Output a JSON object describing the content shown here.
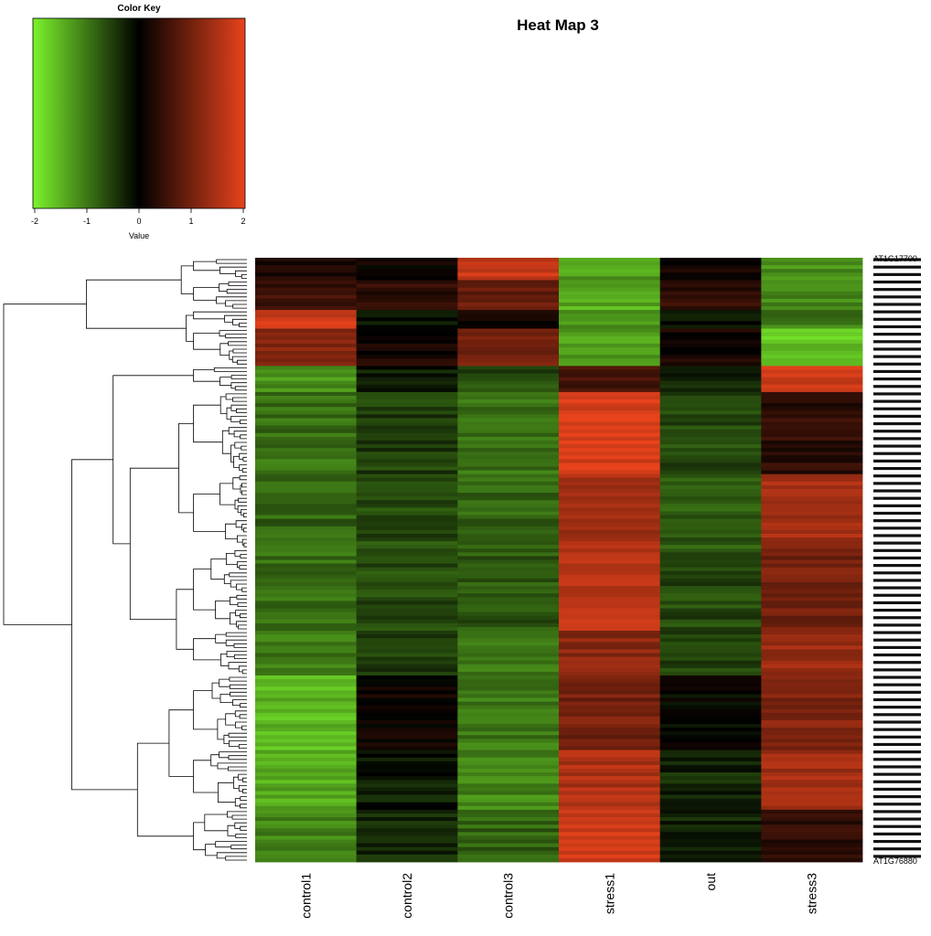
{
  "chart_data": {
    "type": "heatmap",
    "title": "Heat Map 3",
    "color_key": {
      "title": "Color Key",
      "xlabel": "Value",
      "ticks": [
        "-2",
        "-1",
        "0",
        "1",
        "2"
      ],
      "range": [
        -2,
        2
      ],
      "colors": {
        "low": "#7cf32c",
        "mid": "#000000",
        "high": "#e8431c"
      }
    },
    "columns": [
      "control1",
      "control2",
      "control3",
      "stress1",
      "out",
      "stress3"
    ],
    "row_labels_visible": [
      "AT1G17700",
      "AT1G76880"
    ],
    "row_dendrogram": true,
    "row_blocks": [
      {
        "rows": 6,
        "values": [
          0.3,
          0.1,
          1.7,
          -1.3,
          0.1,
          -1.2
        ]
      },
      {
        "rows": 8,
        "values": [
          0.5,
          0.4,
          0.9,
          -1.4,
          0.4,
          -1.1
        ]
      },
      {
        "rows": 5,
        "values": [
          1.8,
          -0.2,
          0.2,
          -1.2,
          -0.1,
          -1.0
        ]
      },
      {
        "rows": 10,
        "values": [
          1.2,
          0.2,
          1.0,
          -1.3,
          0.2,
          -1.6
        ]
      },
      {
        "rows": 7,
        "values": [
          -1.2,
          -0.2,
          -0.6,
          0.5,
          -0.3,
          1.8
        ]
      },
      {
        "rows": 22,
        "values": [
          -0.9,
          -0.5,
          -0.9,
          1.9,
          -0.6,
          0.4
        ]
      },
      {
        "rows": 20,
        "values": [
          -0.8,
          -0.6,
          -0.8,
          1.4,
          -0.7,
          1.4
        ]
      },
      {
        "rows": 22,
        "values": [
          -0.9,
          -0.6,
          -0.7,
          1.6,
          -0.6,
          1.0
        ]
      },
      {
        "rows": 12,
        "values": [
          -1.0,
          -0.5,
          -1.0,
          1.2,
          -0.5,
          1.3
        ]
      },
      {
        "rows": 20,
        "values": [
          -1.5,
          0.1,
          -1.0,
          1.0,
          0.0,
          1.1
        ]
      },
      {
        "rows": 16,
        "values": [
          -1.4,
          -0.2,
          -1.1,
          1.5,
          -0.3,
          1.4
        ]
      },
      {
        "rows": 14,
        "values": [
          -1.1,
          -0.3,
          -0.8,
          1.8,
          -0.3,
          0.4
        ]
      }
    ]
  }
}
